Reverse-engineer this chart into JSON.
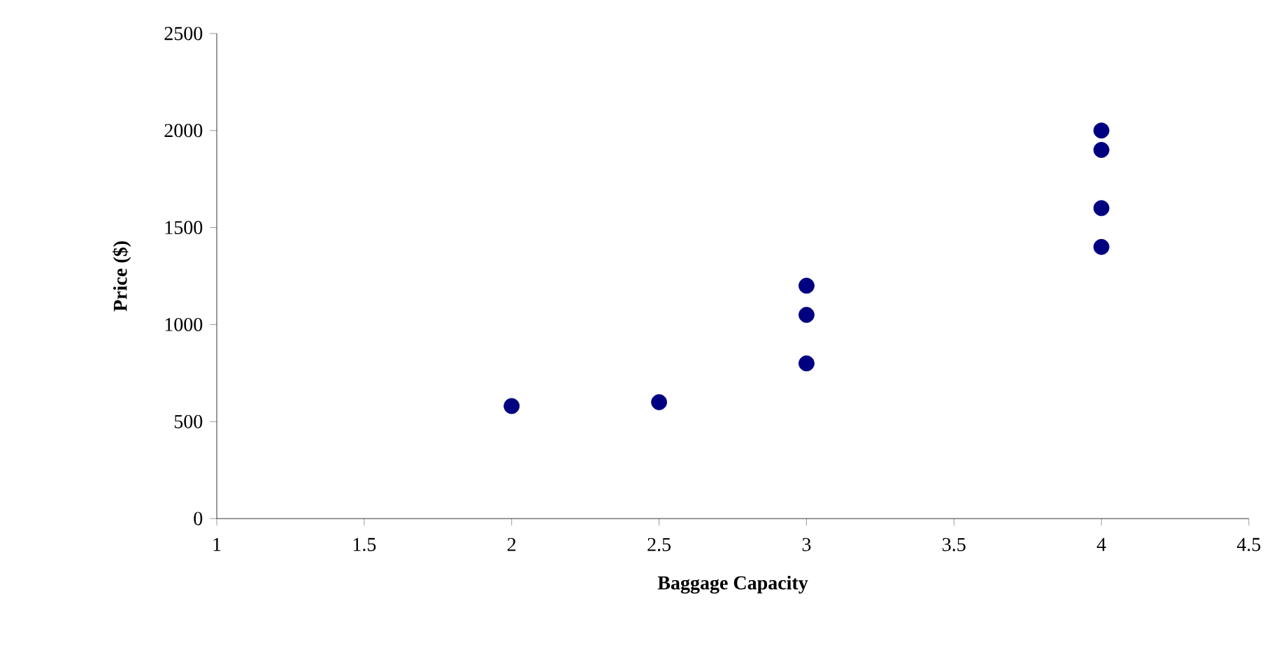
{
  "chart_data": {
    "type": "scatter",
    "xlabel": "Baggage Capacity",
    "ylabel": "Price ($)",
    "x": [
      2,
      2.5,
      3,
      3,
      3,
      4,
      4,
      4,
      4
    ],
    "values": [
      580,
      600,
      1200,
      1050,
      800,
      2000,
      1900,
      1600,
      1400
    ],
    "color": "#000080",
    "marker": "circle",
    "xlim": [
      1,
      4.5
    ],
    "xticks": [
      1,
      1.5,
      2,
      2.5,
      3,
      3.5,
      4,
      4.5
    ],
    "ylim": [
      0,
      2500
    ],
    "yticks": [
      0,
      500,
      1000,
      1500,
      2000,
      2500
    ],
    "grid": false
  }
}
